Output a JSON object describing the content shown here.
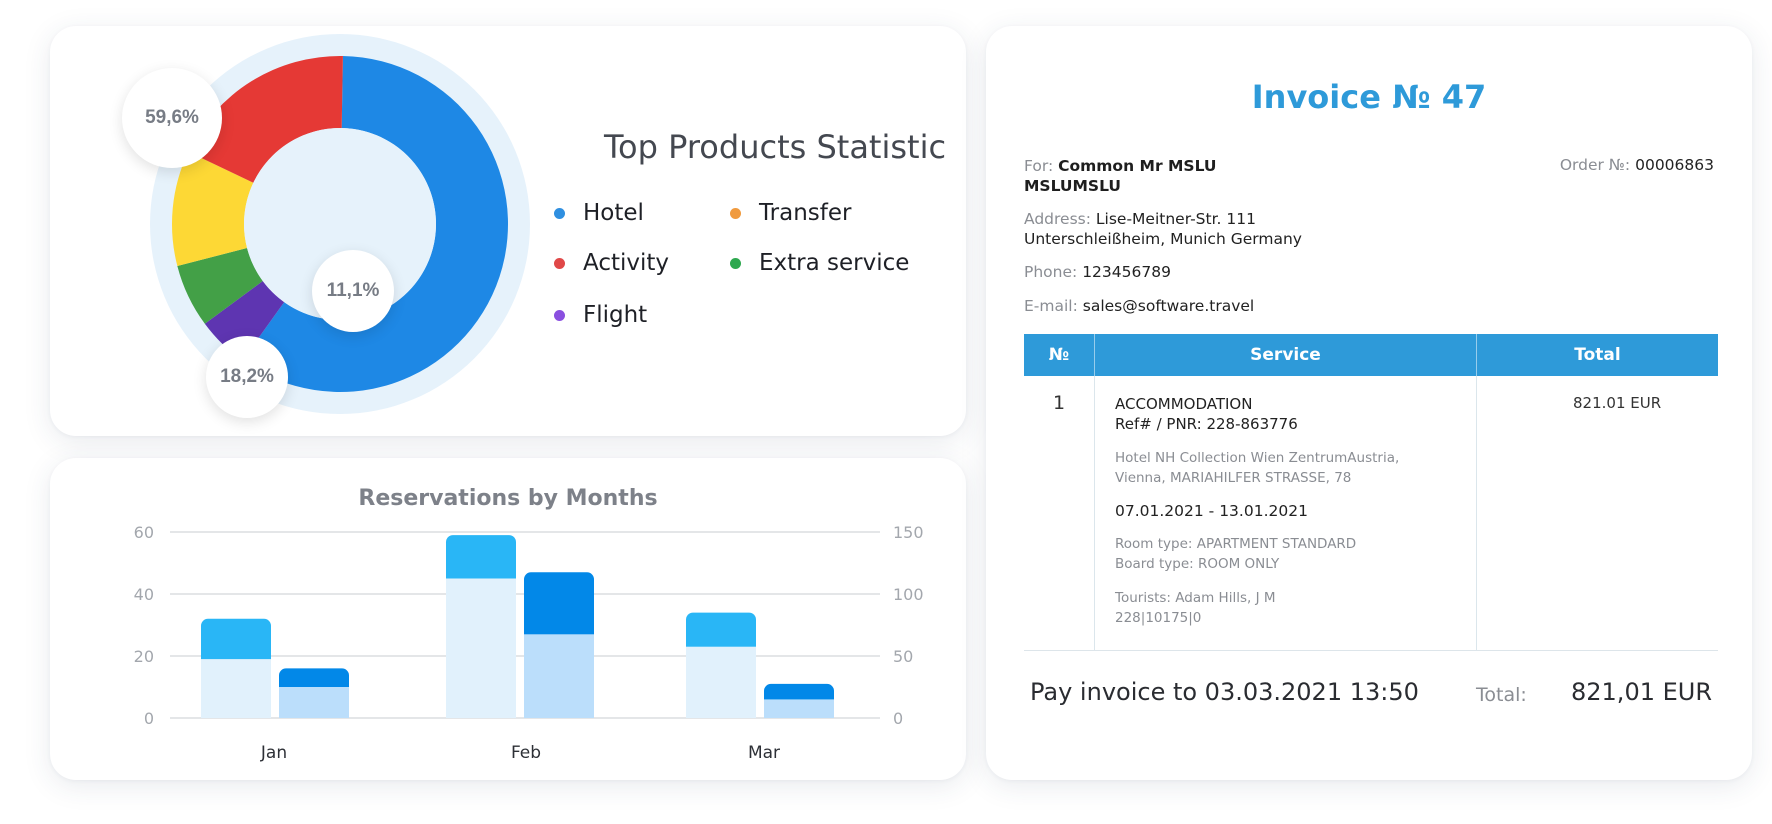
{
  "top_products": {
    "title": "Top Products Statistic",
    "legend": [
      {
        "label": "Hotel",
        "color": "#2f8fe0"
      },
      {
        "label": "Transfer",
        "color": "#f09a3e"
      },
      {
        "label": "Activity",
        "color": "#e04848"
      },
      {
        "label": "Extra service",
        "color": "#2ea84f"
      },
      {
        "label": "Flight",
        "color": "#8a4fe0"
      }
    ],
    "labels": {
      "hotel": "59,6%",
      "yellow": "11,1%",
      "activity": "18,2%"
    }
  },
  "chart_data": [
    {
      "type": "pie",
      "title": "Top Products Statistic",
      "categories": [
        "Hotel",
        "Flight",
        "Extra service",
        "Transfer",
        "Activity"
      ],
      "values": [
        59.6,
        5.0,
        6.1,
        11.1,
        18.2
      ],
      "colors": [
        "#1e88e5",
        "#5e35b1",
        "#43a047",
        "#fdd835",
        "#e53935"
      ],
      "data_labels": [
        "59,6%",
        "",
        "",
        "11,1%",
        "18,2%"
      ],
      "legend_placement": "right"
    },
    {
      "type": "bar",
      "title": "Reservations by Months",
      "categories": [
        "Jan",
        "Feb",
        "Mar"
      ],
      "series": [
        {
          "values": [
            32,
            59,
            34
          ],
          "inner_values": [
            19,
            45,
            23
          ],
          "color": "#29b6f6",
          "inner_color": "#e1f1fc"
        },
        {
          "values": [
            16,
            47,
            11
          ],
          "inner_values": [
            10,
            27,
            6
          ],
          "color": "#0288e8",
          "inner_color": "#bbdefb"
        }
      ],
      "y_left": {
        "ticks": [
          0,
          20,
          40,
          60
        ],
        "range": [
          0,
          60
        ]
      },
      "y_right": {
        "ticks": [
          0,
          50,
          100,
          150
        ],
        "range": [
          0,
          150
        ]
      },
      "grid": true
    }
  ],
  "reservations": {
    "title": "Reservations by Months",
    "x_ticks": [
      "Jan",
      "Feb",
      "Mar"
    ],
    "y_left_ticks": [
      "0",
      "20",
      "40",
      "60"
    ],
    "y_right_ticks": [
      "0",
      "50",
      "100",
      "150"
    ]
  },
  "invoice": {
    "title": "Invoice № 47",
    "for_label": "For:",
    "for_value": "Common Mr MSLU",
    "for_value2": "MSLUMSLU",
    "order_label": "Order №:",
    "order_value": "00006863",
    "address_label": "Address:",
    "address_line1": "Lise-Meitner-Str. 111",
    "address_line2": "Unterschleißheim, Munich Germany",
    "phone_label": "Phone:",
    "phone_value": "123456789",
    "email_label": "E-mail:",
    "email_value": "sales@software.travel",
    "table": {
      "headers": [
        "№",
        "Service",
        "Total"
      ],
      "row": {
        "num": "1",
        "service_title": "ACCOMMODATION",
        "ref": "Ref# / PNR: 228-863776",
        "hotel_line1": "Hotel NH Collection Wien ZentrumAustria,",
        "hotel_line2": "Vienna, MARIAHILFER STRASSE, 78",
        "dates": "07.01.2021 - 13.01.2021",
        "room_type": "Room type: APARTMENT STANDARD",
        "board_type": "Board type: ROOM ONLY",
        "tourists": "Tourists: Adam Hills, J M",
        "code": "228|10175|0",
        "total": "821.01 EUR"
      }
    },
    "pay_text": "Pay invoice to 03.03.2021 13:50",
    "total_label": "Total:",
    "total_value": "821,01 EUR"
  }
}
